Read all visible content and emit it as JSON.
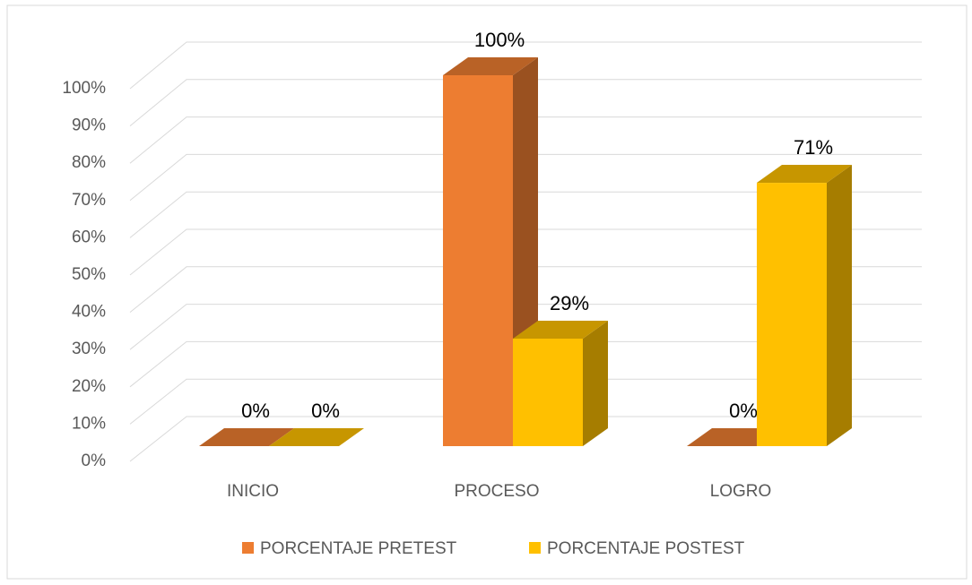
{
  "chart_data": {
    "type": "bar3d",
    "categories": [
      "INICIO",
      "PROCESO",
      "LOGRO"
    ],
    "series": [
      {
        "name": "PORCENTAJE PRETEST",
        "color": "#ED7D31",
        "values": [
          0,
          100,
          0
        ],
        "value_labels": [
          "0%",
          "100%",
          "0%"
        ]
      },
      {
        "name": "PORCENTAJE POSTEST",
        "color": "#FFC000",
        "values": [
          0,
          29,
          71
        ],
        "value_labels": [
          "0%",
          "29%",
          "71%"
        ]
      }
    ],
    "ylim": [
      0,
      100
    ],
    "yticks": [
      {
        "value": 0,
        "label": "0%"
      },
      {
        "value": 10,
        "label": "10%"
      },
      {
        "value": 20,
        "label": "20%"
      },
      {
        "value": 30,
        "label": "30%"
      },
      {
        "value": 40,
        "label": "40%"
      },
      {
        "value": 50,
        "label": "50%"
      },
      {
        "value": 60,
        "label": "60%"
      },
      {
        "value": 70,
        "label": "70%"
      },
      {
        "value": 80,
        "label": "80%"
      },
      {
        "value": 90,
        "label": "90%"
      },
      {
        "value": 100,
        "label": "100%"
      }
    ],
    "grid": true,
    "legend": "bottom"
  }
}
